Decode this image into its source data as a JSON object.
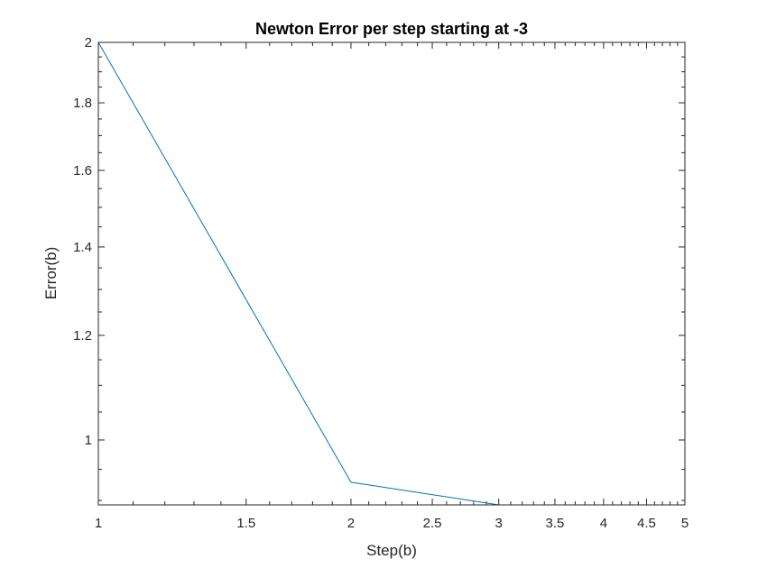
{
  "chart_data": {
    "type": "line",
    "title": "Newton Error per step starting at -3",
    "xlabel": "Step(b)",
    "ylabel": "Error(b)",
    "x_scale": "log",
    "y_scale": "log",
    "xlim": [
      1,
      5
    ],
    "ylim": [
      0.893,
      2
    ],
    "x_ticks": [
      1,
      1.5,
      2,
      2.5,
      3,
      3.5,
      4,
      4.5,
      5
    ],
    "x_tick_labels": [
      "1",
      "1.5",
      "2",
      "2.5",
      "3",
      "3.5",
      "4",
      "4.5",
      "5"
    ],
    "y_ticks": [
      1,
      1.2,
      1.4,
      1.6,
      1.8,
      2
    ],
    "y_tick_labels": [
      "1",
      "1.2",
      "1.4",
      "1.6",
      "1.8",
      "2"
    ],
    "grid": false,
    "series": [
      {
        "color": "#0072BD",
        "x": [
          1,
          2,
          3,
          4,
          5
        ],
        "y": [
          2,
          0.929,
          0.893,
          0.893,
          0.893
        ]
      }
    ]
  }
}
